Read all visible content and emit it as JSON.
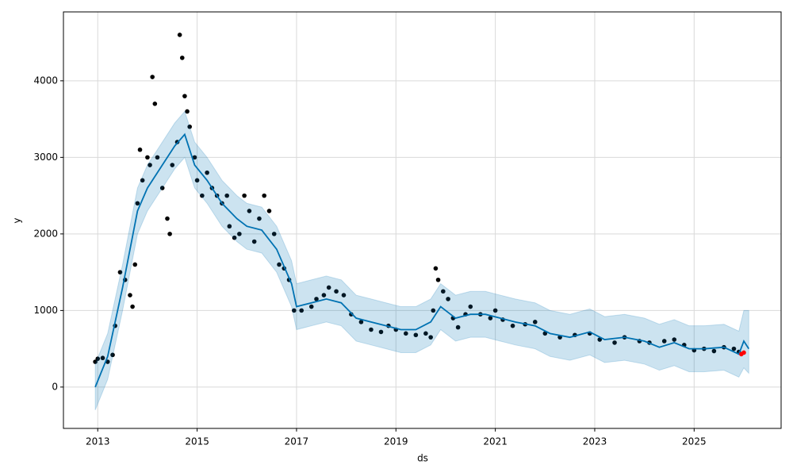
{
  "chart_data": {
    "type": "line",
    "x_label": "ds",
    "y_label": "y",
    "xlim": [
      2012.31,
      2026.75
    ],
    "ylim": [
      -540,
      4900
    ],
    "xticks": [
      2013,
      2015,
      2017,
      2019,
      2021,
      2023,
      2025
    ],
    "yticks": [
      0,
      1000,
      2000,
      3000,
      4000
    ],
    "grid": true,
    "series": [
      {
        "type": "scatter",
        "color": "#000000",
        "x": [
          2012.95,
          2013.0,
          2013.1,
          2013.2,
          2013.3,
          2013.35,
          2013.45,
          2013.55,
          2013.65,
          2013.7,
          2013.75,
          2013.8,
          2013.85,
          2013.9,
          2014.0,
          2014.05,
          2014.1,
          2014.15,
          2014.2,
          2014.3,
          2014.4,
          2014.45,
          2014.5,
          2014.6,
          2014.65,
          2014.7,
          2014.75,
          2014.8,
          2014.85,
          2014.95,
          2015.0,
          2015.1,
          2015.2,
          2015.3,
          2015.4,
          2015.5,
          2015.6,
          2015.65,
          2015.75,
          2015.85,
          2015.95,
          2016.05,
          2016.15,
          2016.25,
          2016.35,
          2016.45,
          2016.55,
          2016.65,
          2016.75,
          2016.85,
          2016.95,
          2017.1,
          2017.3,
          2017.4,
          2017.55,
          2017.65,
          2017.8,
          2017.95,
          2018.1,
          2018.3,
          2018.5,
          2018.7,
          2018.85,
          2019.0,
          2019.2,
          2019.4,
          2019.6,
          2019.7,
          2019.75,
          2019.8,
          2019.85,
          2019.95,
          2020.05,
          2020.15,
          2020.25,
          2020.4,
          2020.5,
          2020.7,
          2020.9,
          2021.0,
          2021.15,
          2021.35,
          2021.6,
          2021.8,
          2022.0,
          2022.3,
          2022.6,
          2022.9,
          2023.1,
          2023.4,
          2023.6,
          2023.9,
          2024.1,
          2024.4,
          2024.6,
          2024.8,
          2025.0,
          2025.2,
          2025.4,
          2025.6,
          2025.8,
          2025.9
        ],
        "values": [
          330,
          370,
          380,
          330,
          420,
          800,
          1500,
          1400,
          1200,
          1050,
          1600,
          2400,
          3100,
          2700,
          3000,
          2900,
          4050,
          3700,
          3000,
          2600,
          2200,
          2000,
          2900,
          3200,
          4600,
          4300,
          3800,
          3600,
          3400,
          3000,
          2700,
          2500,
          2800,
          2600,
          2500,
          2400,
          2500,
          2100,
          1950,
          2000,
          2500,
          2300,
          1900,
          2200,
          2500,
          2300,
          2000,
          1600,
          1550,
          1400,
          1000,
          1000,
          1050,
          1150,
          1200,
          1300,
          1250,
          1200,
          950,
          850,
          750,
          720,
          800,
          750,
          700,
          680,
          700,
          650,
          1000,
          1550,
          1400,
          1250,
          1150,
          900,
          780,
          950,
          1050,
          950,
          900,
          1000,
          880,
          800,
          820,
          850,
          700,
          650,
          680,
          700,
          620,
          580,
          650,
          600,
          580,
          600,
          620,
          550,
          480,
          500,
          470,
          520,
          500,
          460
        ]
      },
      {
        "type": "line",
        "color": "#0072B2",
        "x": [
          2012.95,
          2013.2,
          2013.5,
          2013.8,
          2014.0,
          2014.3,
          2014.55,
          2014.75,
          2014.95,
          2015.2,
          2015.5,
          2015.8,
          2016.0,
          2016.3,
          2016.6,
          2016.9,
          2017.0,
          2017.3,
          2017.6,
          2017.9,
          2018.2,
          2018.5,
          2018.8,
          2019.1,
          2019.4,
          2019.7,
          2019.9,
          2020.2,
          2020.5,
          2020.8,
          2021.1,
          2021.4,
          2021.8,
          2022.1,
          2022.5,
          2022.9,
          2023.2,
          2023.6,
          2024.0,
          2024.3,
          2024.6,
          2024.9,
          2025.2,
          2025.6,
          2025.9,
          2026.0,
          2026.1
        ],
        "values": [
          0,
          400,
          1300,
          2300,
          2600,
          2900,
          3150,
          3300,
          2900,
          2700,
          2400,
          2200,
          2100,
          2050,
          1800,
          1350,
          1050,
          1100,
          1150,
          1100,
          900,
          850,
          800,
          750,
          750,
          850,
          1050,
          900,
          950,
          950,
          900,
          850,
          800,
          700,
          650,
          720,
          620,
          650,
          600,
          520,
          580,
          500,
          500,
          520,
          430,
          600,
          500
        ],
        "lower": [
          -300,
          100,
          1000,
          2000,
          2300,
          2600,
          2850,
          3000,
          2600,
          2400,
          2100,
          1900,
          1800,
          1750,
          1500,
          1050,
          750,
          800,
          850,
          800,
          600,
          550,
          500,
          450,
          450,
          550,
          750,
          600,
          650,
          650,
          600,
          550,
          500,
          400,
          350,
          420,
          320,
          350,
          300,
          220,
          280,
          200,
          200,
          220,
          130,
          250,
          180
        ],
        "upper": [
          300,
          700,
          1600,
          2600,
          2900,
          3200,
          3450,
          3600,
          3200,
          3000,
          2700,
          2500,
          2400,
          2350,
          2100,
          1650,
          1350,
          1400,
          1450,
          1400,
          1200,
          1150,
          1100,
          1050,
          1050,
          1150,
          1350,
          1200,
          1250,
          1250,
          1200,
          1150,
          1100,
          1000,
          950,
          1020,
          920,
          950,
          900,
          820,
          880,
          800,
          800,
          820,
          730,
          1000,
          1000
        ]
      },
      {
        "type": "scatter",
        "color": "#ff0000",
        "x": [
          2025.95,
          2026.0
        ],
        "values": [
          430,
          450
        ]
      }
    ]
  }
}
